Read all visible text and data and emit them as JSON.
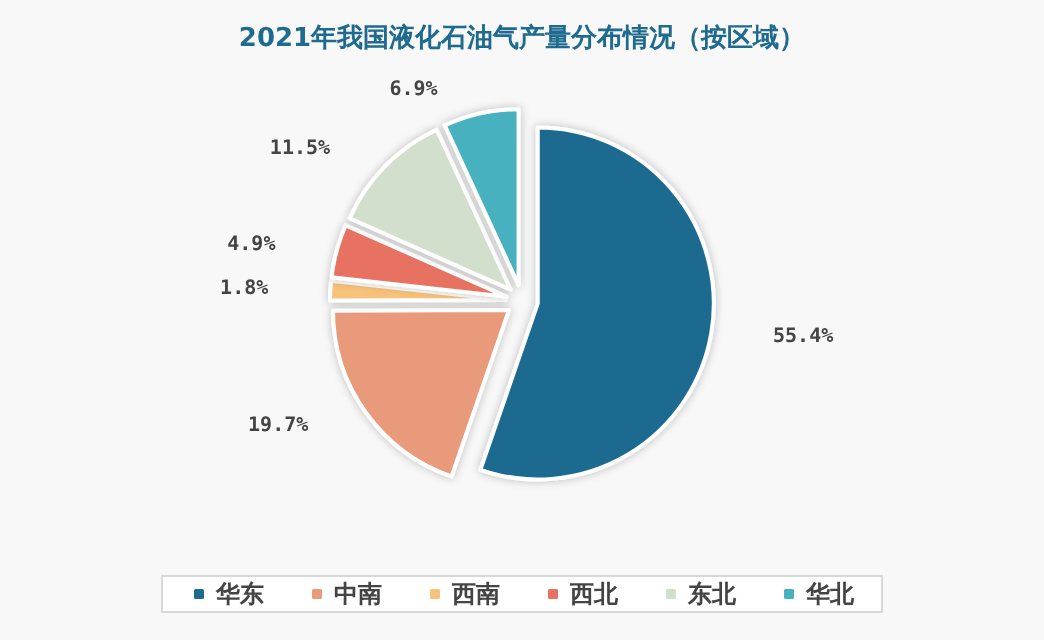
{
  "chart_data": {
    "type": "pie",
    "title": "2021年我国液化石油气产量分布情况（按区域）",
    "categories": [
      "华东",
      "中南",
      "西南",
      "西北",
      "东北",
      "华北"
    ],
    "values": [
      55.4,
      19.7,
      1.8,
      4.9,
      11.5,
      6.9
    ],
    "colors": [
      "#1d6b8f",
      "#e89a7a",
      "#f7c27a",
      "#e87262",
      "#d1dfcc",
      "#47b1c0"
    ],
    "value_labels": [
      "55.4%",
      "19.7%",
      "1.8%",
      "4.9%",
      "11.5%",
      "6.9%"
    ],
    "legend": "bottom"
  }
}
